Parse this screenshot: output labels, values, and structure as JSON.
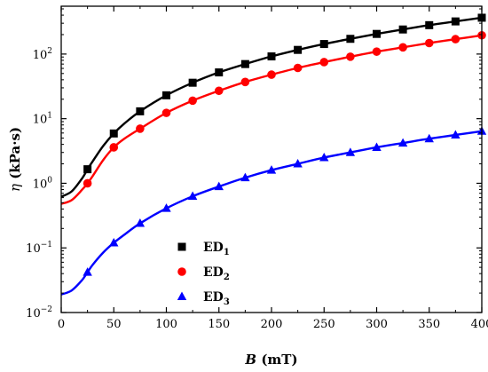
{
  "chart_data": {
    "type": "line",
    "x_axis": {
      "label_var": "B",
      "label_unit": " (mT)",
      "range": [
        0,
        400
      ],
      "ticks": [
        0,
        50,
        100,
        150,
        200,
        250,
        300,
        350,
        400
      ]
    },
    "y_axis": {
      "label_var": "η",
      "label_unit": " (kPa·s)",
      "scale": "log",
      "range": [
        0.01,
        550
      ],
      "ticks": [
        {
          "value": 0.01,
          "base": "10",
          "exp": "−2"
        },
        {
          "value": 0.1,
          "base": "10",
          "exp": "−1"
        },
        {
          "value": 1,
          "base": "10",
          "exp": "0"
        },
        {
          "value": 10,
          "base": "10",
          "exp": "1"
        },
        {
          "value": 100,
          "base": "10",
          "exp": "2"
        }
      ]
    },
    "grid": false,
    "legend_position": "bottom-center",
    "series": [
      {
        "name": "ED",
        "sub": "1",
        "color": "#000000",
        "marker": "square",
        "x": [
          25,
          50,
          75,
          100,
          125,
          150,
          175,
          200,
          225,
          250,
          275,
          300,
          325,
          350,
          375,
          400
        ],
        "y": [
          1.65,
          5.9,
          13,
          23,
          36,
          52,
          70,
          92,
          116,
          143,
          172,
          205,
          240,
          280,
          320,
          365
        ],
        "fit_x": [
          0,
          10,
          20,
          25,
          30,
          40,
          50,
          60,
          75,
          100,
          125,
          150,
          175,
          200,
          225,
          250,
          275,
          300,
          325,
          350,
          375,
          400
        ],
        "fit_y": [
          0.62,
          0.75,
          1.2,
          1.65,
          2.2,
          3.8,
          5.9,
          8.4,
          13,
          23,
          36,
          52,
          70,
          92,
          116,
          143,
          172,
          205,
          240,
          280,
          320,
          365
        ]
      },
      {
        "name": "ED",
        "sub": "2",
        "color": "#ff0000",
        "marker": "circle",
        "x": [
          25,
          50,
          75,
          100,
          125,
          150,
          175,
          200,
          225,
          250,
          275,
          300,
          325,
          350,
          375,
          400
        ],
        "y": [
          1.0,
          3.6,
          7.0,
          12.3,
          19,
          27,
          37,
          48,
          61,
          75,
          91,
          109,
          127,
          148,
          170,
          195
        ],
        "fit_x": [
          0,
          10,
          20,
          25,
          30,
          40,
          50,
          60,
          75,
          100,
          125,
          150,
          175,
          200,
          225,
          250,
          275,
          300,
          325,
          350,
          375,
          400
        ],
        "fit_y": [
          0.48,
          0.55,
          0.8,
          1.0,
          1.3,
          2.3,
          3.6,
          4.9,
          7.0,
          12.3,
          19,
          27,
          37,
          48,
          61,
          75,
          91,
          109,
          127,
          148,
          170,
          195
        ]
      },
      {
        "name": "ED",
        "sub": "3",
        "color": "#0000ff",
        "marker": "triangle",
        "x": [
          25,
          50,
          75,
          100,
          125,
          150,
          175,
          200,
          225,
          250,
          275,
          300,
          325,
          350,
          375,
          400
        ],
        "y": [
          0.042,
          0.12,
          0.24,
          0.41,
          0.63,
          0.89,
          1.22,
          1.6,
          2.0,
          2.5,
          3.0,
          3.6,
          4.2,
          4.9,
          5.6,
          6.4
        ],
        "fit_x": [
          0,
          10,
          20,
          25,
          30,
          40,
          50,
          60,
          75,
          100,
          125,
          150,
          175,
          200,
          225,
          250,
          275,
          300,
          325,
          350,
          375,
          400
        ],
        "fit_y": [
          0.019,
          0.022,
          0.032,
          0.042,
          0.055,
          0.085,
          0.12,
          0.16,
          0.24,
          0.41,
          0.63,
          0.89,
          1.22,
          1.6,
          2.0,
          2.5,
          3.0,
          3.6,
          4.2,
          4.9,
          5.6,
          6.4
        ]
      }
    ]
  }
}
